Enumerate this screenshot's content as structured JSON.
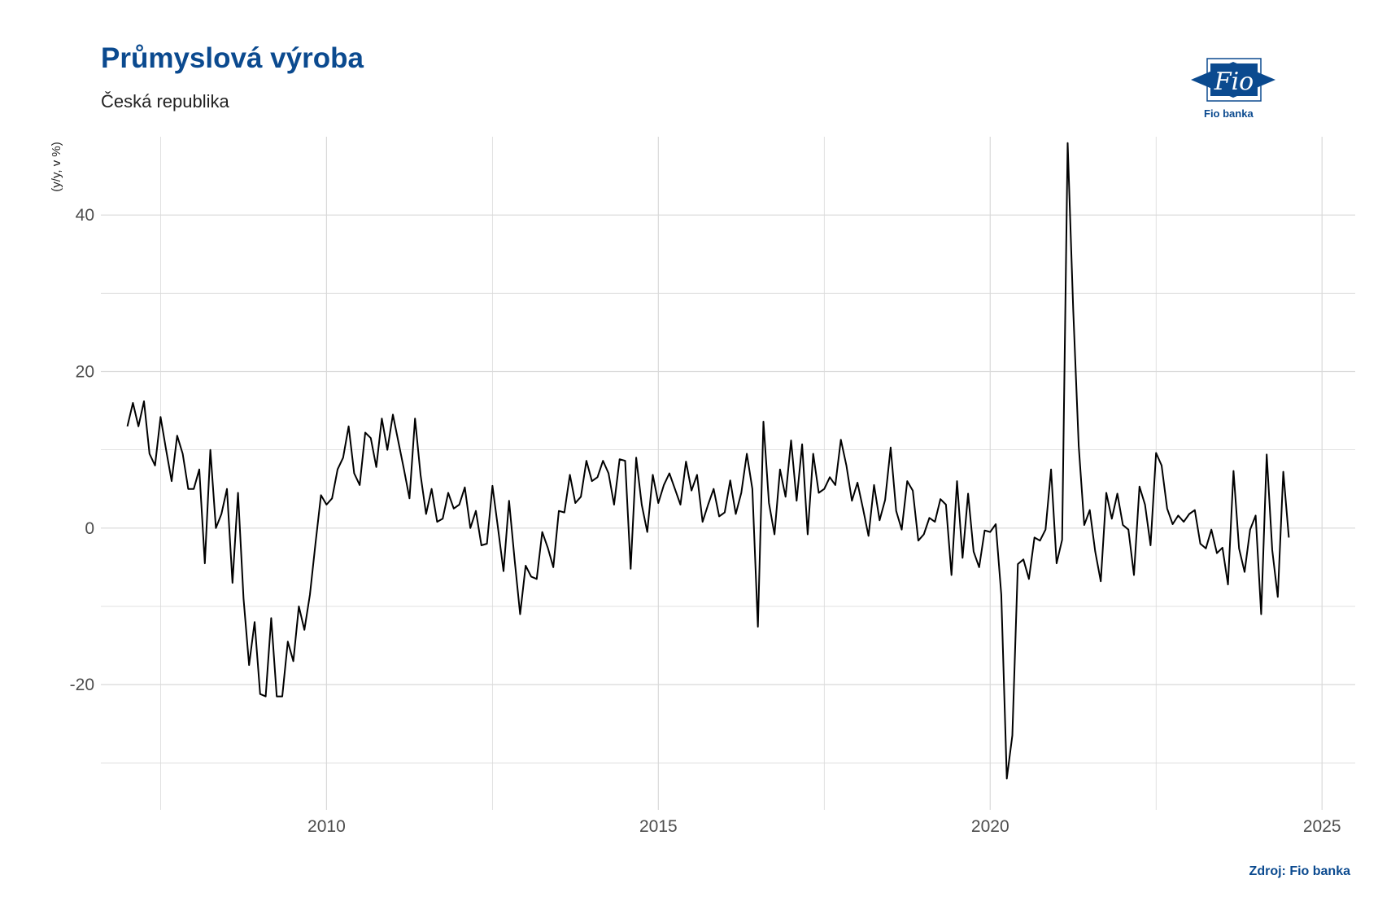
{
  "header": {
    "title": "Průmyslová výroba",
    "subtitle": "Česká republika"
  },
  "logo": {
    "mark": "Fio",
    "caption": "Fio banka",
    "icon": "fio-banka-logo"
  },
  "footer": {
    "source": "Zdroj: Fio banka"
  },
  "colors": {
    "title": "#0b4a8f",
    "line": "#000000",
    "grid": "#d9d9d9"
  },
  "chart_data": {
    "type": "line",
    "title": "Průmyslová výroba",
    "subtitle": "Česká republika",
    "xlabel": "",
    "ylabel": "(y/y, v %)",
    "xlim": [
      2006.6,
      2025.5
    ],
    "ylim": [
      -36,
      50
    ],
    "x_ticks": [
      2010,
      2015,
      2020,
      2025
    ],
    "y_ticks": [
      -20,
      0,
      20,
      40
    ],
    "grid": true,
    "legend": "none",
    "x_start": 2007.0,
    "x_step_months": 1,
    "series": [
      {
        "values": [
          13,
          16,
          13,
          16.2,
          9.5,
          8,
          14.2,
          10,
          6,
          11.8,
          9.5,
          5,
          5,
          7.5,
          -4.5,
          10,
          0,
          1.8,
          5,
          -7,
          4.5,
          -9,
          -17.5,
          -12,
          -21.2,
          -21.5,
          -11.5,
          -21.5,
          -21.5,
          -14.5,
          -17,
          -10,
          -13,
          -8.5,
          -2,
          4.2,
          3,
          3.8,
          7.5,
          9,
          13,
          7,
          5.5,
          12.2,
          11.5,
          7.8,
          14,
          10,
          14.5,
          11,
          7.5,
          3.8,
          14,
          6.8,
          1.8,
          5,
          0.8,
          1.2,
          4.5,
          2.5,
          3,
          5.2,
          0,
          2.2,
          -2.2,
          -2,
          5.4,
          0,
          -5.5,
          3.5,
          -4,
          -11,
          -4.8,
          -6.2,
          -6.5,
          -0.5,
          -2.5,
          -5,
          2.2,
          2,
          6.8,
          3.2,
          4,
          8.6,
          6,
          6.5,
          8.6,
          7,
          3,
          8.8,
          8.6,
          -5.2,
          9,
          3,
          -0.5,
          6.8,
          3.2,
          5.5,
          7,
          5,
          3,
          8.5,
          4.8,
          6.8,
          0.8,
          3,
          5,
          1.5,
          2,
          6.1,
          1.8,
          4.5,
          9.5,
          5,
          -12.6,
          13.6,
          3.2,
          -0.8,
          7.5,
          4,
          11.2,
          3.5,
          10.7,
          -0.8,
          9.5,
          4.5,
          5,
          6.5,
          5.5,
          11.3,
          8,
          3.5,
          5.8,
          2.5,
          -1,
          5.5,
          1,
          3.6,
          10.3,
          2.2,
          -0.2,
          6,
          4.8,
          -1.6,
          -0.8,
          1.3,
          0.8,
          3.7,
          3,
          -6,
          6,
          -3.8,
          4.4,
          -3,
          -5,
          -0.3,
          -0.5,
          0.5,
          -8.5,
          -32,
          -26.5,
          -4.6,
          -4,
          -6.5,
          -1.2,
          -1.6,
          -0.2,
          7.5,
          -4.5,
          -1.5,
          49.2,
          28,
          10.5,
          0.4,
          2.3,
          -3,
          -6.8,
          4.5,
          1.2,
          4.4,
          0.4,
          -0.2,
          -6,
          5.3,
          3,
          -2.2,
          9.6,
          8,
          2.5,
          0.5,
          1.6,
          0.8,
          1.8,
          2.3,
          -2,
          -2.6,
          -0.2,
          -3.2,
          -2.5,
          -7.2,
          7.3,
          -2.6,
          -5.6,
          -0.2,
          1.6,
          -11,
          9.4,
          -2.8,
          -8.8,
          7.2,
          -1.2
        ]
      }
    ]
  }
}
